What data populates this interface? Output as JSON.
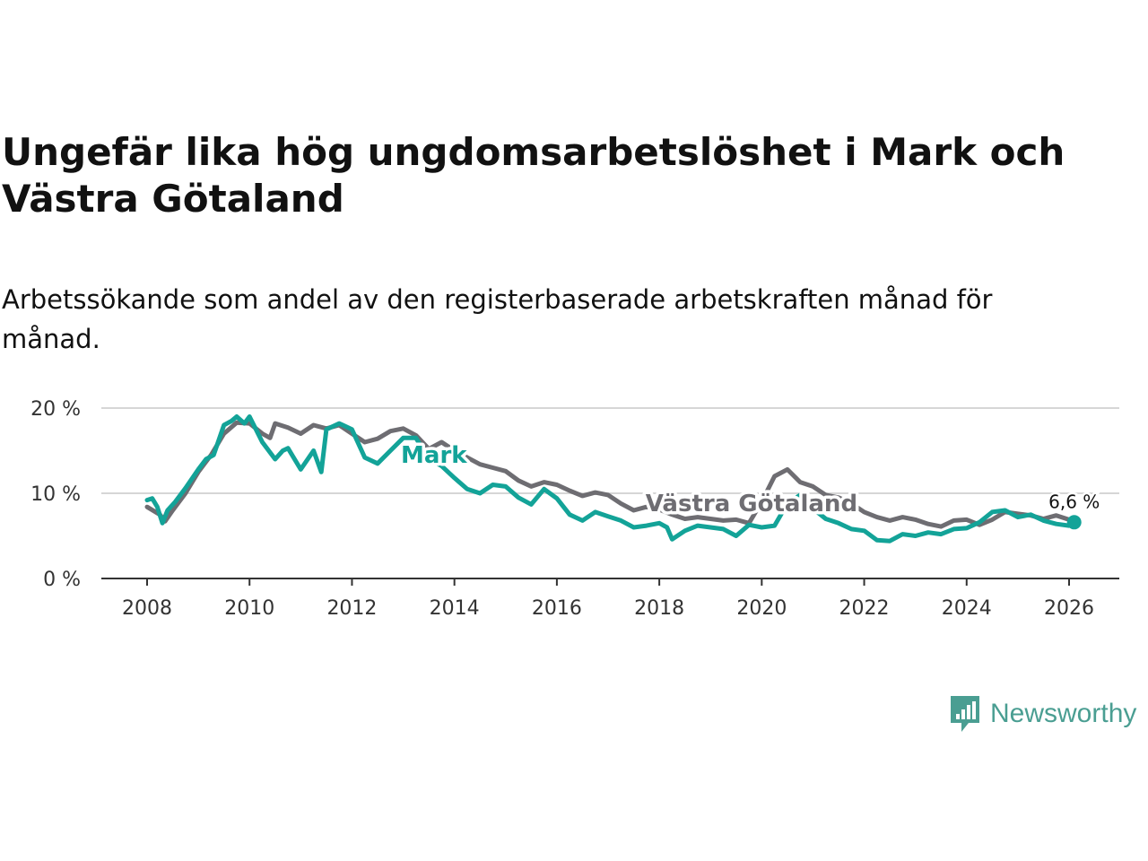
{
  "title": "Ungefär lika hög ungdomsarbetslöshet i Mark och Västra Götaland",
  "subtitle": "Arbetssökande som andel av den registerbaserade arbetskraften månad för månad.",
  "brand": {
    "name": "Newsworthy",
    "icon": "newsworthy-logo-icon"
  },
  "colors": {
    "mark": "#13a398",
    "vastra_gotaland": "#6e6d72",
    "grid": "#d6d6d6",
    "axis": "#333333"
  },
  "chart_data": {
    "type": "line",
    "title": "Ungefär lika hög ungdomsarbetslöshet i Mark och Västra Götaland",
    "xlabel": "",
    "ylabel": "",
    "xlim": [
      2008,
      2026.1
    ],
    "ylim": [
      0,
      20
    ],
    "x_ticks": [
      2008,
      2010,
      2012,
      2014,
      2016,
      2018,
      2020,
      2022,
      2024,
      2026
    ],
    "x_tick_labels": [
      "2008",
      "2010",
      "2012",
      "2014",
      "2016",
      "2018",
      "2020",
      "2022",
      "2024",
      "2026"
    ],
    "y_ticks": [
      0,
      10,
      20
    ],
    "y_tick_labels": [
      "0 %",
      "10 %",
      "20 %"
    ],
    "grid": "horizontal",
    "end_label": "6,6 %",
    "series": [
      {
        "name": "Västra Götaland",
        "key": "vastra",
        "x": [
          2008.0,
          2008.25,
          2008.35,
          2008.5,
          2008.75,
          2009.0,
          2009.25,
          2009.5,
          2009.75,
          2010.0,
          2010.25,
          2010.4,
          2010.5,
          2010.75,
          2011.0,
          2011.25,
          2011.5,
          2011.75,
          2012.0,
          2012.25,
          2012.5,
          2012.75,
          2013.0,
          2013.25,
          2013.5,
          2013.75,
          2014.0,
          2014.25,
          2014.5,
          2014.75,
          2015.0,
          2015.25,
          2015.5,
          2015.75,
          2016.0,
          2016.25,
          2016.5,
          2016.75,
          2017.0,
          2017.25,
          2017.5,
          2017.75,
          2018.0,
          2018.25,
          2018.5,
          2018.75,
          2019.0,
          2019.25,
          2019.5,
          2019.75,
          2020.0,
          2020.25,
          2020.5,
          2020.75,
          2021.0,
          2021.25,
          2021.5,
          2021.75,
          2022.0,
          2022.25,
          2022.5,
          2022.75,
          2023.0,
          2023.25,
          2023.5,
          2023.75,
          2024.0,
          2024.25,
          2024.5,
          2024.75,
          2025.0,
          2025.25,
          2025.5,
          2025.75,
          2026.0,
          2026.1
        ],
        "values": [
          8.4,
          7.5,
          6.7,
          8.0,
          10.0,
          12.5,
          14.5,
          17.0,
          18.3,
          18.2,
          17.0,
          16.5,
          18.2,
          17.7,
          17.0,
          18.0,
          17.6,
          18.0,
          17.0,
          16.0,
          16.4,
          17.3,
          17.6,
          16.8,
          15.2,
          16.0,
          15.0,
          14.2,
          13.4,
          13.0,
          12.6,
          11.5,
          10.8,
          11.3,
          11.0,
          10.3,
          9.7,
          10.1,
          9.8,
          8.8,
          8.0,
          8.4,
          8.1,
          7.5,
          7.0,
          7.2,
          7.0,
          6.8,
          6.9,
          6.5,
          9.0,
          12.0,
          12.8,
          11.3,
          10.8,
          9.8,
          9.5,
          8.8,
          7.8,
          7.2,
          6.8,
          7.2,
          6.9,
          6.4,
          6.1,
          6.8,
          6.9,
          6.3,
          6.9,
          7.8,
          7.6,
          7.4,
          7.0,
          7.4,
          6.9,
          6.8
        ]
      },
      {
        "name": "Mark",
        "key": "mark",
        "x": [
          2008.0,
          2008.1,
          2008.2,
          2008.3,
          2008.4,
          2008.55,
          2008.75,
          2009.0,
          2009.15,
          2009.3,
          2009.5,
          2009.65,
          2009.75,
          2009.9,
          2010.0,
          2010.25,
          2010.5,
          2010.65,
          2010.75,
          2011.0,
          2011.25,
          2011.4,
          2011.5,
          2011.75,
          2012.0,
          2012.25,
          2012.5,
          2012.75,
          2013.0,
          2013.25,
          2013.5,
          2013.75,
          2014.0,
          2014.25,
          2014.5,
          2014.75,
          2015.0,
          2015.25,
          2015.5,
          2015.75,
          2016.0,
          2016.25,
          2016.5,
          2016.75,
          2017.0,
          2017.25,
          2017.5,
          2017.75,
          2018.0,
          2018.15,
          2018.25,
          2018.5,
          2018.75,
          2019.0,
          2019.25,
          2019.5,
          2019.75,
          2020.0,
          2020.25,
          2020.5,
          2020.75,
          2021.0,
          2021.25,
          2021.5,
          2021.75,
          2022.0,
          2022.25,
          2022.5,
          2022.75,
          2023.0,
          2023.25,
          2023.5,
          2023.75,
          2024.0,
          2024.25,
          2024.5,
          2024.75,
          2025.0,
          2025.25,
          2025.5,
          2025.75,
          2026.0,
          2026.1
        ],
        "values": [
          9.2,
          9.4,
          8.4,
          6.5,
          8.0,
          9.0,
          10.6,
          12.8,
          14.0,
          14.5,
          18.0,
          18.5,
          19.0,
          18.2,
          19.0,
          16.0,
          14.0,
          15.0,
          15.3,
          12.8,
          15.0,
          12.5,
          17.5,
          18.2,
          17.5,
          14.2,
          13.5,
          15.0,
          16.5,
          16.5,
          14.0,
          13.2,
          11.8,
          10.5,
          10.0,
          11.0,
          10.8,
          9.5,
          8.7,
          10.5,
          9.4,
          7.5,
          6.8,
          7.8,
          7.3,
          6.8,
          6.0,
          6.2,
          6.5,
          6.0,
          4.6,
          5.6,
          6.2,
          6.0,
          5.8,
          5.0,
          6.3,
          6.0,
          6.2,
          8.8,
          9.8,
          8.2,
          7.0,
          6.5,
          5.8,
          5.6,
          4.5,
          4.4,
          5.2,
          5.0,
          5.4,
          5.2,
          5.8,
          5.9,
          6.6,
          7.8,
          8.0,
          7.2,
          7.5,
          6.8,
          6.4,
          6.2,
          6.6
        ]
      }
    ]
  }
}
